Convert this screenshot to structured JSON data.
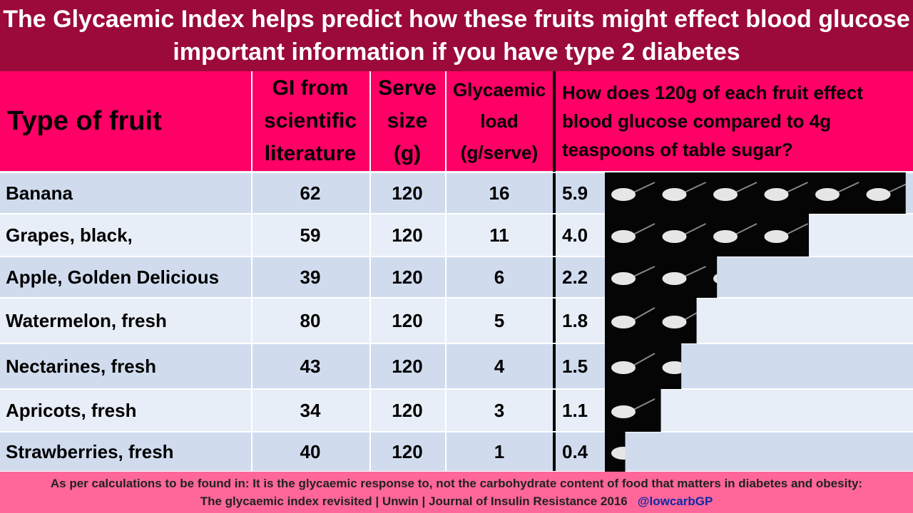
{
  "title": [
    "The Glycaemic Index helps predict how these fruits might effect blood glucose",
    "important information if you have type 2 diabetes"
  ],
  "table": {
    "headers": [
      "Type of fruit",
      "GI from scientific literature",
      "Serve size (g)",
      "Glycaemic load (g/serve)",
      "How does 120g of each fruit effect blood glucose compared to 4g teaspoons of table sugar?"
    ],
    "rows": [
      [
        "Banana",
        "62",
        "120",
        "16",
        "5.9"
      ],
      [
        "Grapes, black,",
        "59",
        "120",
        "11",
        "4.0"
      ],
      [
        "Apple, Golden Delicious",
        "39",
        "120",
        "6",
        "2.2"
      ],
      [
        "Watermelon, fresh",
        "80",
        "120",
        "5",
        "1.8"
      ],
      [
        "Nectarines, fresh",
        "43",
        "120",
        "4",
        "1.5"
      ],
      [
        "Apricots, fresh",
        "34",
        "120",
        "3",
        "1.1"
      ],
      [
        "Strawberries, fresh",
        "40",
        "120",
        "1",
        "0.4"
      ]
    ]
  },
  "footer": {
    "line1": "As per calculations to be found in: It is the glycaemic response to, not the carbohydrate content of food that matters in diabetes and obesity:",
    "line2": "The glycaemic index revisited | Unwin | Journal of Insulin Resistance 2016",
    "handle": "@lowcarbGP"
  }
}
